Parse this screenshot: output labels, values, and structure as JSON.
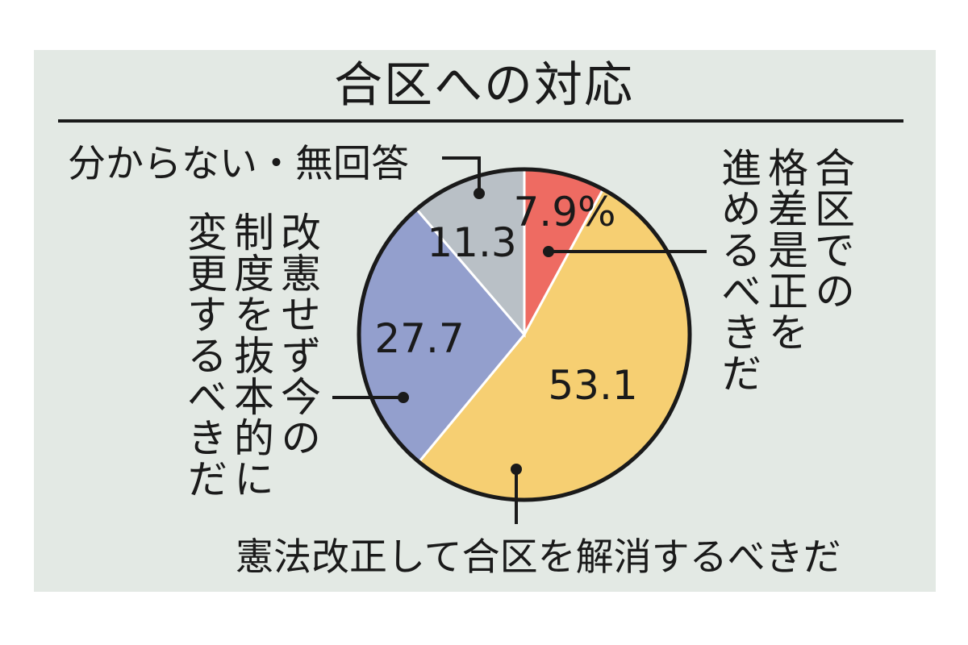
{
  "title": "合区への対応",
  "chart_data": {
    "type": "pie",
    "title": "合区への対応",
    "slices": [
      {
        "label": "合区での格差是正を進めるべきだ",
        "value": 7.9,
        "value_label": "7.9%",
        "color": "#ee6b62"
      },
      {
        "label": "憲法改正して合区を解消するべきだ",
        "value": 53.1,
        "value_label": "53.1",
        "color": "#f6cf72"
      },
      {
        "label": "改憲せず今の制度を抜本的に変更するべきだ",
        "value": 27.7,
        "value_label": "27.7",
        "color": "#939fcd"
      },
      {
        "label": "分からない・無回答",
        "value": 11.3,
        "value_label": "11.3",
        "color": "#b9c0c6"
      }
    ]
  },
  "labels": {
    "a_col1": "合区での",
    "a_col2": "格差是正を",
    "a_col3": "進めるべきだ",
    "b_line": "憲法改正して合区を解消するべきだ",
    "c_col1": "改憲せず今の",
    "c_col2": "制度を抜本的に",
    "c_col3": "変更するべきだ",
    "d_line": "分からない・無回答"
  }
}
